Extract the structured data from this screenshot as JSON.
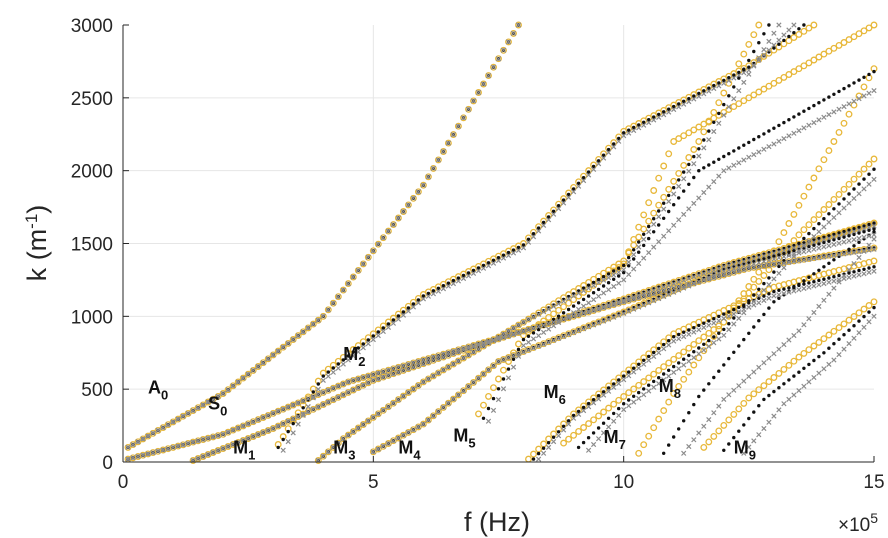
{
  "chart_data": {
    "type": "scatter",
    "xlabel": "f (Hz)",
    "ylabel": "k (m-1)",
    "x_exponent": "×10",
    "x_exponent_power": "5",
    "xlim": [
      0,
      15
    ],
    "ylim": [
      0,
      3000
    ],
    "x_ticks": [
      "0",
      "5",
      "10",
      "15"
    ],
    "y_ticks": [
      "0",
      "500",
      "1000",
      "1500",
      "2000",
      "2500",
      "3000"
    ],
    "grid": true,
    "colors": {
      "gold": "#E8B83A",
      "black": "#111111",
      "gray": "#8C8C8C",
      "grid": "#E6E6E6",
      "axis": "#262626"
    },
    "mode_labels": [
      {
        "base": "A",
        "sub": "0",
        "f": 0.5,
        "k": 470
      },
      {
        "base": "S",
        "sub": "0",
        "f": 1.7,
        "k": 360
      },
      {
        "base": "M",
        "sub": "1",
        "f": 2.2,
        "k": 60
      },
      {
        "base": "M",
        "sub": "2",
        "f": 4.4,
        "k": 700
      },
      {
        "base": "M",
        "sub": "3",
        "f": 4.2,
        "k": 60
      },
      {
        "base": "M",
        "sub": "4",
        "f": 5.5,
        "k": 60
      },
      {
        "base": "M",
        "sub": "5",
        "f": 6.6,
        "k": 140
      },
      {
        "base": "M",
        "sub": "6",
        "f": 8.4,
        "k": 440
      },
      {
        "base": "M",
        "sub": "7",
        "f": 9.6,
        "k": 130
      },
      {
        "base": "M",
        "sub": "8",
        "f": 10.7,
        "k": 480
      },
      {
        "base": "M",
        "sub": "9",
        "f": 12.2,
        "k": 60
      }
    ],
    "series": [
      {
        "color": "gold",
        "marker": "circle",
        "segments": [
          [
            [
              0.1,
              100
            ],
            [
              2,
              470
            ],
            [
              4,
              1000
            ],
            [
              6,
              1900
            ],
            [
              7.9,
              3000
            ]
          ],
          [
            [
              0.1,
              20
            ],
            [
              2,
              190
            ],
            [
              4.5,
              550
            ],
            [
              7,
              800
            ],
            [
              10,
              1100
            ],
            [
              12.5,
              1330
            ],
            [
              15,
              1470
            ]
          ],
          [
            [
              1.4,
              10
            ],
            [
              3,
              230
            ],
            [
              5,
              560
            ],
            [
              7,
              790
            ],
            [
              10,
              1120
            ],
            [
              12,
              1350
            ],
            [
              15,
              1640
            ]
          ],
          [
            [
              3.1,
              120
            ],
            [
              4,
              610
            ],
            [
              6,
              1150
            ],
            [
              8,
              1500
            ],
            [
              10,
              2270
            ],
            [
              12.5,
              2720
            ],
            [
              13.8,
              3000
            ]
          ],
          [
            [
              3.9,
              10
            ],
            [
              4.4,
              160
            ],
            [
              6,
              550
            ],
            [
              8,
              960
            ],
            [
              10,
              1380
            ],
            [
              11.5,
              2200
            ],
            [
              12.7,
              3000
            ]
          ],
          [
            [
              5,
              70
            ],
            [
              6,
              260
            ],
            [
              7.5,
              690
            ],
            [
              10,
              1030
            ],
            [
              12,
              1320
            ],
            [
              15,
              1640
            ]
          ],
          [
            [
              7.1,
              330
            ],
            [
              8,
              870
            ],
            [
              10,
              1360
            ],
            [
              11,
              2200
            ],
            [
              15,
              3000
            ]
          ],
          [
            [
              8.1,
              20
            ],
            [
              9,
              330
            ],
            [
              11,
              880
            ],
            [
              13,
              1200
            ],
            [
              15,
              1380
            ]
          ],
          [
            [
              8.8,
              130
            ],
            [
              10,
              450
            ],
            [
              12,
              960
            ],
            [
              13.5,
              1560
            ],
            [
              15,
              2080
            ]
          ],
          [
            [
              10.3,
              60
            ],
            [
              11,
              470
            ],
            [
              13,
              1450
            ],
            [
              15,
              2700
            ]
          ],
          [
            [
              11.6,
              100
            ],
            [
              12.5,
              440
            ],
            [
              13.5,
              720
            ],
            [
              15,
              1100
            ]
          ]
        ]
      },
      {
        "color": "black",
        "marker": "dot",
        "segments": [
          [
            [
              0.1,
              100
            ],
            [
              2,
              470
            ],
            [
              4,
              1000
            ],
            [
              6,
              1900
            ],
            [
              7.9,
              3000
            ]
          ],
          [
            [
              0.1,
              20
            ],
            [
              2,
              190
            ],
            [
              4.5,
              550
            ],
            [
              7,
              800
            ],
            [
              10,
              1100
            ],
            [
              12.5,
              1330
            ],
            [
              15,
              1470
            ]
          ],
          [
            [
              1.4,
              10
            ],
            [
              3,
              230
            ],
            [
              5,
              560
            ],
            [
              7,
              790
            ],
            [
              10,
              1120
            ],
            [
              12,
              1350
            ],
            [
              15,
              1640
            ]
          ],
          [
            [
              3.1,
              100
            ],
            [
              4,
              590
            ],
            [
              6,
              1140
            ],
            [
              8,
              1490
            ],
            [
              10,
              2260
            ],
            [
              12.5,
              2710
            ],
            [
              13.6,
              3000
            ]
          ],
          [
            [
              3.9,
              10
            ],
            [
              4.4,
              160
            ],
            [
              6,
              550
            ],
            [
              8,
              960
            ],
            [
              10,
              1350
            ],
            [
              11.5,
              2150
            ],
            [
              12.9,
              3000
            ]
          ],
          [
            [
              5,
              70
            ],
            [
              6,
              260
            ],
            [
              7.5,
              690
            ],
            [
              10,
              1030
            ],
            [
              12,
              1320
            ],
            [
              15,
              1600
            ]
          ],
          [
            [
              7.2,
              300
            ],
            [
              8,
              840
            ],
            [
              10,
              1300
            ],
            [
              11.5,
              2000
            ],
            [
              15,
              2680
            ]
          ],
          [
            [
              8.2,
              20
            ],
            [
              9,
              320
            ],
            [
              11,
              860
            ],
            [
              13,
              1170
            ],
            [
              15,
              1340
            ]
          ],
          [
            [
              9.1,
              100
            ],
            [
              10,
              400
            ],
            [
              12,
              910
            ],
            [
              13.5,
              1500
            ],
            [
              15,
              2010
            ]
          ],
          [
            [
              10.8,
              60
            ],
            [
              11.5,
              450
            ],
            [
              13,
              1100
            ],
            [
              15,
              1580
            ]
          ],
          [
            [
              12,
              80
            ],
            [
              12.8,
              430
            ],
            [
              14,
              750
            ],
            [
              15,
              1060
            ]
          ]
        ]
      },
      {
        "color": "gray",
        "marker": "cross",
        "segments": [
          [
            [
              0.1,
              100
            ],
            [
              2,
              470
            ],
            [
              4,
              1000
            ],
            [
              6,
              1900
            ],
            [
              7.9,
              3000
            ]
          ],
          [
            [
              0.1,
              20
            ],
            [
              2,
              190
            ],
            [
              4.5,
              550
            ],
            [
              7,
              800
            ],
            [
              10,
              1100
            ],
            [
              12.5,
              1330
            ],
            [
              15,
              1460
            ]
          ],
          [
            [
              1.4,
              10
            ],
            [
              3,
              230
            ],
            [
              5,
              560
            ],
            [
              7,
              790
            ],
            [
              10,
              1110
            ],
            [
              12,
              1340
            ],
            [
              15,
              1620
            ]
          ],
          [
            [
              3.2,
              80
            ],
            [
              4,
              560
            ],
            [
              6,
              1120
            ],
            [
              8,
              1470
            ],
            [
              10,
              2240
            ],
            [
              12.5,
              2690
            ],
            [
              13.4,
              3000
            ]
          ],
          [
            [
              3.9,
              10
            ],
            [
              4.4,
              160
            ],
            [
              6,
              550
            ],
            [
              8,
              960
            ],
            [
              10,
              1320
            ],
            [
              11.5,
              2100
            ],
            [
              13.1,
              3000
            ]
          ],
          [
            [
              5,
              70
            ],
            [
              6,
              260
            ],
            [
              7.5,
              690
            ],
            [
              10,
              1020
            ],
            [
              12,
              1310
            ],
            [
              15,
              1560
            ]
          ],
          [
            [
              7.3,
              280
            ],
            [
              8,
              800
            ],
            [
              10,
              1250
            ],
            [
              12,
              2000
            ],
            [
              15,
              2550
            ]
          ],
          [
            [
              8.3,
              20
            ],
            [
              9,
              300
            ],
            [
              11,
              830
            ],
            [
              13,
              1140
            ],
            [
              15,
              1310
            ]
          ],
          [
            [
              9.3,
              80
            ],
            [
              10,
              360
            ],
            [
              12,
              870
            ],
            [
              13.5,
              1450
            ],
            [
              15,
              1940
            ]
          ],
          [
            [
              11.2,
              60
            ],
            [
              12,
              430
            ],
            [
              13.5,
              900
            ],
            [
              15,
              1530
            ]
          ],
          [
            [
              12.4,
              60
            ],
            [
              13.2,
              400
            ],
            [
              14.2,
              700
            ],
            [
              15,
              1000
            ]
          ]
        ]
      }
    ]
  }
}
